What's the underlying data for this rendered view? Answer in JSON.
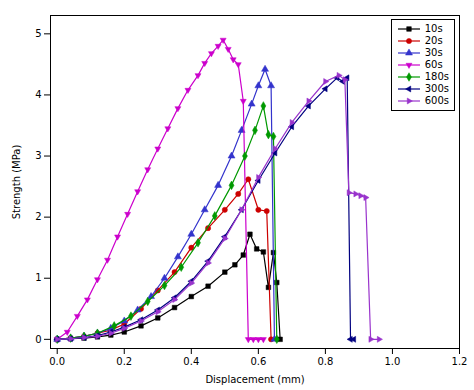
{
  "chart_data": {
    "type": "line",
    "xlabel": "Displacement (mm)",
    "ylabel": "Strength (MPa)",
    "xlim": [
      -0.02,
      1.2
    ],
    "ylim": [
      -0.15,
      5.3
    ],
    "xticks": [
      {
        "value": 0.0,
        "label": "0.0"
      },
      0.2,
      0.4,
      0.6,
      0.8,
      {
        "value": 1.0,
        "label": "1.0"
      },
      1.2
    ],
    "yticks": [
      0,
      1,
      2,
      3,
      4,
      5
    ],
    "grid": false,
    "legend": "upper right",
    "series": [
      {
        "name": "10s",
        "color": "#000000",
        "marker": "square",
        "x": [
          0.0,
          0.04,
          0.08,
          0.12,
          0.16,
          0.2,
          0.25,
          0.3,
          0.35,
          0.4,
          0.45,
          0.5,
          0.53,
          0.555,
          0.575,
          0.595,
          0.615,
          0.63,
          0.645,
          0.655,
          0.665
        ],
        "values": [
          0.0,
          0.01,
          0.02,
          0.04,
          0.07,
          0.12,
          0.22,
          0.35,
          0.52,
          0.7,
          0.87,
          1.1,
          1.22,
          1.38,
          1.72,
          1.48,
          1.43,
          0.85,
          1.42,
          0.93,
          0.0
        ]
      },
      {
        "name": "20s",
        "color": "#cc0000",
        "marker": "circle",
        "x": [
          0.0,
          0.04,
          0.08,
          0.12,
          0.16,
          0.2,
          0.25,
          0.3,
          0.35,
          0.4,
          0.45,
          0.5,
          0.54,
          0.57,
          0.6,
          0.625,
          0.638
        ],
        "values": [
          0.0,
          0.02,
          0.05,
          0.1,
          0.15,
          0.25,
          0.5,
          0.8,
          1.1,
          1.5,
          1.82,
          2.12,
          2.38,
          2.62,
          2.12,
          2.1,
          0.0
        ]
      },
      {
        "name": "30s",
        "color": "#3333cc",
        "marker": "triangle-up",
        "x": [
          0.0,
          0.04,
          0.08,
          0.12,
          0.16,
          0.2,
          0.24,
          0.28,
          0.32,
          0.36,
          0.4,
          0.44,
          0.48,
          0.52,
          0.55,
          0.58,
          0.6,
          0.62,
          0.638,
          0.648
        ],
        "values": [
          0.0,
          0.02,
          0.05,
          0.1,
          0.18,
          0.3,
          0.48,
          0.7,
          1.0,
          1.35,
          1.72,
          2.12,
          2.52,
          3.0,
          3.42,
          3.85,
          4.15,
          4.42,
          4.15,
          0.0
        ]
      },
      {
        "name": "60s",
        "color": "#cc00cc",
        "marker": "triangle-down",
        "x": [
          0.0,
          0.03,
          0.06,
          0.09,
          0.12,
          0.15,
          0.18,
          0.21,
          0.24,
          0.27,
          0.3,
          0.33,
          0.36,
          0.39,
          0.42,
          0.44,
          0.46,
          0.48,
          0.495,
          0.51,
          0.525,
          0.54,
          0.555,
          0.57,
          0.585,
          0.6,
          0.615
        ],
        "values": [
          0.0,
          0.12,
          0.38,
          0.65,
          0.98,
          1.3,
          1.68,
          2.05,
          2.42,
          2.78,
          3.12,
          3.45,
          3.78,
          4.08,
          4.32,
          4.52,
          4.68,
          4.8,
          4.9,
          4.75,
          4.58,
          4.5,
          3.9,
          0.0,
          0.0,
          0.0,
          0.0
        ]
      },
      {
        "name": "180s",
        "color": "#009900",
        "marker": "diamond",
        "x": [
          0.0,
          0.04,
          0.08,
          0.12,
          0.17,
          0.22,
          0.27,
          0.32,
          0.37,
          0.42,
          0.47,
          0.52,
          0.56,
          0.59,
          0.615,
          0.63,
          0.645,
          0.655
        ],
        "values": [
          0.0,
          0.02,
          0.05,
          0.1,
          0.22,
          0.38,
          0.62,
          0.88,
          1.18,
          1.58,
          2.02,
          2.52,
          3.0,
          3.42,
          3.82,
          3.35,
          3.32,
          0.0
        ]
      },
      {
        "name": "300s",
        "color": "#000080",
        "marker": "triangle-left",
        "x": [
          0.0,
          0.04,
          0.08,
          0.12,
          0.16,
          0.2,
          0.25,
          0.3,
          0.35,
          0.4,
          0.45,
          0.5,
          0.55,
          0.6,
          0.65,
          0.7,
          0.75,
          0.8,
          0.835,
          0.852,
          0.865,
          0.875,
          0.885
        ],
        "values": [
          0.0,
          0.01,
          0.03,
          0.06,
          0.12,
          0.2,
          0.32,
          0.48,
          0.68,
          0.95,
          1.28,
          1.68,
          2.12,
          2.6,
          3.05,
          3.48,
          3.82,
          4.1,
          4.28,
          4.22,
          4.28,
          0.0,
          0.0
        ]
      },
      {
        "name": "600s",
        "color": "#9933cc",
        "marker": "triangle-right",
        "x": [
          0.0,
          0.04,
          0.08,
          0.12,
          0.16,
          0.2,
          0.25,
          0.3,
          0.35,
          0.4,
          0.45,
          0.5,
          0.55,
          0.6,
          0.65,
          0.7,
          0.75,
          0.8,
          0.84,
          0.858,
          0.87,
          0.89,
          0.905,
          0.92,
          0.935,
          0.96
        ],
        "values": [
          0.0,
          0.01,
          0.03,
          0.05,
          0.1,
          0.18,
          0.3,
          0.45,
          0.65,
          0.92,
          1.25,
          1.65,
          2.12,
          2.65,
          3.12,
          3.55,
          3.9,
          4.22,
          4.32,
          4.25,
          2.4,
          2.38,
          2.35,
          2.32,
          0.0,
          0.0
        ]
      }
    ]
  }
}
